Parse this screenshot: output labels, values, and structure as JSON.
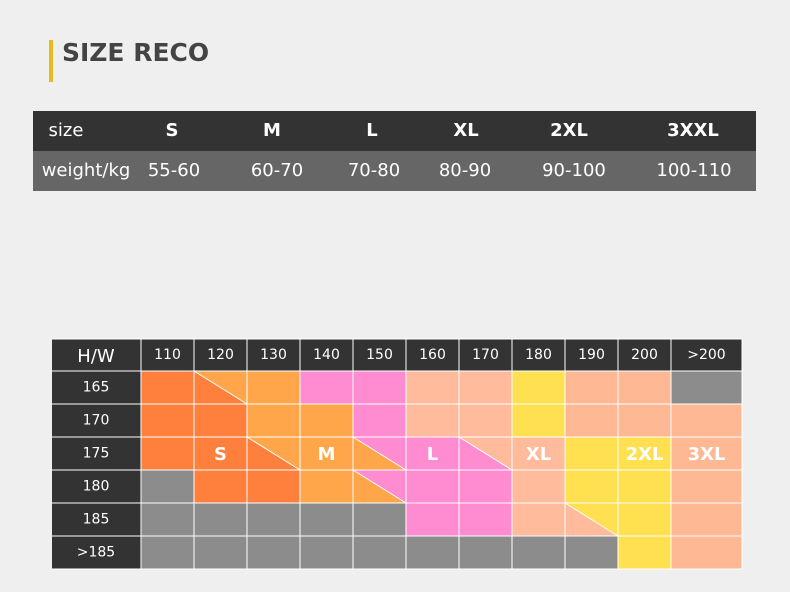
{
  "header": {
    "title": "SIZE RECO"
  },
  "table": {
    "rows": [
      [
        "size",
        "S",
        "M",
        "L",
        "XL",
        "2XL",
        "3XXL"
      ],
      [
        "weight/kg",
        "55-60",
        "60-70",
        "70-80",
        "80-90",
        "90-100",
        "100-110"
      ]
    ]
  },
  "grid": {
    "corner": "H/W",
    "columns": [
      "110",
      "120",
      "130",
      "140",
      "150",
      "160",
      "170",
      "180",
      "190",
      "200",
      ">200"
    ],
    "rows": [
      "165",
      "170",
      "175",
      "180",
      "185",
      ">185"
    ],
    "labels": [
      "S",
      "M",
      "L",
      "XL",
      "2XL",
      "3XL"
    ],
    "colors": [
      [
        "#ff7f3c",
        [
          "#ffa64a",
          "#ff7f3c"
        ],
        "#ffa64a",
        "#ff8bd0",
        "#ff8bd0",
        "#ffbb9b",
        "#ffbb9b",
        "#ffe050",
        "#ffb894",
        "#ffb894",
        "#8c8c8c"
      ],
      [
        "#ff7f3c",
        "#ff7f3c",
        "#ffa64a",
        "#ffa64a",
        "#ff8bd0",
        "#ffbb9b",
        "#ffbb9b",
        "#ffe050",
        "#ffb894",
        "#ffb894",
        "#ffb894"
      ],
      [
        "#ff7f3c",
        "#ff7f3c",
        [
          "#ffa64a",
          "#ff7f3c"
        ],
        "#ffa64a",
        [
          "#ff8bd0",
          "#ffa64a"
        ],
        "#ff8bd0",
        [
          "#ffbb9b",
          "#ff8bd0"
        ],
        "#ffbb9b",
        "#ffe050",
        "#ffe050",
        "#ffb894"
      ],
      [
        "#8c8c8c",
        "#ff7f3c",
        "#ff7f3c",
        "#ffa64a",
        [
          "#ff8bd0",
          "#ffa64a"
        ],
        "#ff8bd0",
        "#ff8bd0",
        "#ffbb9b",
        "#ffe050",
        "#ffe050",
        "#ffb894"
      ],
      [
        "#8c8c8c",
        "#8c8c8c",
        "#8c8c8c",
        "#8c8c8c",
        "#8c8c8c",
        "#ff8bd0",
        "#ff8bd0",
        "#ffbb9b",
        [
          "#ffe050",
          "#ffbb9b"
        ],
        "#ffe050",
        "#ffb894"
      ],
      [
        "#8c8c8c",
        "#8c8c8c",
        "#8c8c8c",
        "#8c8c8c",
        "#8c8c8c",
        "#8c8c8c",
        "#8c8c8c",
        "#8c8c8c",
        "#8c8c8c",
        "#ffe050",
        "#ffb894"
      ]
    ]
  }
}
